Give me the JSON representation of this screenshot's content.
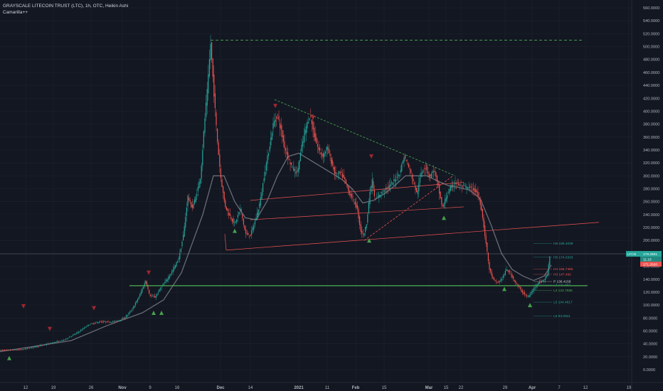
{
  "header": {
    "title": "GRAYSCALE LITECOIN TRUST (LTC), 1h, OTC, Heikin Ashi",
    "indicator": "Camarilla++"
  },
  "colors": {
    "background": "#131722",
    "up": "#26a69a",
    "down": "#ef5350",
    "grid": "#1e222d",
    "support_line": "#4caf50",
    "resistance_dash": "#4caf50",
    "trendline": "#ef5350",
    "moving_average": "#787b86",
    "price_line": "#9598a1"
  },
  "chart_data": {
    "type": "candlestick",
    "title": "GRAYSCALE LITECOIN TRUST (LTC), 1h, OTC, Heikin Ashi",
    "ylim": [
      0,
      560
    ],
    "y_ticks": [
      "560.0000",
      "540.0000",
      "520.0000",
      "500.0000",
      "480.0000",
      "460.0000",
      "440.0000",
      "420.0000",
      "400.0000",
      "380.0000",
      "360.0000",
      "340.0000",
      "320.0000",
      "300.0000",
      "280.0000",
      "260.0000",
      "240.0000",
      "220.0000",
      "200.0000",
      "180.0000",
      "160.0000",
      "140.0000",
      "120.0000",
      "100.0000",
      "80.0000",
      "60.0000",
      "40.0000",
      "20.0000",
      "0.0000"
    ],
    "x_ticks": [
      "12",
      "19",
      "26",
      "Nov",
      "9",
      "16",
      "Dec",
      "14",
      "2021",
      "11",
      "Feb",
      "15",
      "Mar",
      "15",
      "22",
      "29",
      "Apr",
      "7",
      "12",
      "19"
    ],
    "price_path": [
      [
        0,
        30
      ],
      [
        30,
        31
      ],
      [
        60,
        38
      ],
      [
        90,
        46
      ],
      [
        110,
        58
      ],
      [
        125,
        70
      ],
      [
        140,
        74
      ],
      [
        160,
        74
      ],
      [
        175,
        80
      ],
      [
        185,
        92
      ],
      [
        195,
        112
      ],
      [
        205,
        138
      ],
      [
        210,
        115
      ],
      [
        218,
        112
      ],
      [
        225,
        125
      ],
      [
        235,
        140
      ],
      [
        245,
        158
      ],
      [
        252,
        175
      ],
      [
        258,
        210
      ],
      [
        264,
        268
      ],
      [
        270,
        250
      ],
      [
        276,
        270
      ],
      [
        282,
        300
      ],
      [
        288,
        390
      ],
      [
        292,
        440
      ],
      [
        296,
        505
      ],
      [
        300,
        440
      ],
      [
        305,
        360
      ],
      [
        310,
        300
      ],
      [
        316,
        255
      ],
      [
        322,
        240
      ],
      [
        330,
        225
      ],
      [
        338,
        250
      ],
      [
        345,
        210
      ],
      [
        352,
        208
      ],
      [
        360,
        235
      ],
      [
        366,
        262
      ],
      [
        372,
        305
      ],
      [
        378,
        340
      ],
      [
        384,
        380
      ],
      [
        390,
        395
      ],
      [
        395,
        370
      ],
      [
        400,
        345
      ],
      [
        406,
        325
      ],
      [
        412,
        310
      ],
      [
        418,
        305
      ],
      [
        424,
        345
      ],
      [
        430,
        375
      ],
      [
        436,
        395
      ],
      [
        442,
        360
      ],
      [
        448,
        340
      ],
      [
        454,
        330
      ],
      [
        460,
        345
      ],
      [
        466,
        320
      ],
      [
        472,
        300
      ],
      [
        478,
        305
      ],
      [
        484,
        295
      ],
      [
        490,
        275
      ],
      [
        496,
        265
      ],
      [
        502,
        250
      ],
      [
        507,
        215
      ],
      [
        511,
        208
      ],
      [
        515,
        225
      ],
      [
        519,
        265
      ],
      [
        523,
        295
      ],
      [
        527,
        262
      ],
      [
        533,
        270
      ],
      [
        540,
        278
      ],
      [
        548,
        285
      ],
      [
        556,
        295
      ],
      [
        562,
        305
      ],
      [
        568,
        330
      ],
      [
        574,
        315
      ],
      [
        580,
        295
      ],
      [
        586,
        272
      ],
      [
        592,
        305
      ],
      [
        598,
        315
      ],
      [
        604,
        298
      ],
      [
        610,
        310
      ],
      [
        616,
        282
      ],
      [
        622,
        250
      ],
      [
        628,
        270
      ],
      [
        634,
        282
      ],
      [
        640,
        290
      ],
      [
        648,
        284
      ],
      [
        656,
        282
      ],
      [
        664,
        280
      ],
      [
        670,
        275
      ],
      [
        676,
        255
      ],
      [
        682,
        205
      ],
      [
        688,
        155
      ],
      [
        694,
        138
      ],
      [
        700,
        134
      ],
      [
        706,
        142
      ],
      [
        712,
        155
      ],
      [
        718,
        148
      ],
      [
        724,
        136
      ],
      [
        730,
        126
      ],
      [
        736,
        118
      ],
      [
        742,
        112
      ],
      [
        748,
        121
      ],
      [
        754,
        132
      ],
      [
        760,
        136
      ],
      [
        766,
        140
      ],
      [
        770,
        150
      ],
      [
        774,
        188
      ]
    ],
    "moving_average": [
      [
        0,
        28
      ],
      [
        100,
        45
      ],
      [
        150,
        68
      ],
      [
        200,
        88
      ],
      [
        230,
        108
      ],
      [
        255,
        150
      ],
      [
        270,
        195
      ],
      [
        285,
        240
      ],
      [
        300,
        300
      ],
      [
        315,
        300
      ],
      [
        330,
        260
      ],
      [
        345,
        235
      ],
      [
        360,
        232
      ],
      [
        375,
        260
      ],
      [
        390,
        300
      ],
      [
        405,
        330
      ],
      [
        420,
        335
      ],
      [
        435,
        325
      ],
      [
        450,
        315
      ],
      [
        465,
        305
      ],
      [
        480,
        295
      ],
      [
        495,
        280
      ],
      [
        510,
        258
      ],
      [
        525,
        262
      ],
      [
        540,
        272
      ],
      [
        555,
        285
      ],
      [
        570,
        300
      ],
      [
        585,
        300
      ],
      [
        600,
        300
      ],
      [
        615,
        292
      ],
      [
        630,
        285
      ],
      [
        645,
        282
      ],
      [
        660,
        278
      ],
      [
        675,
        265
      ],
      [
        690,
        225
      ],
      [
        705,
        180
      ],
      [
        720,
        155
      ],
      [
        735,
        145
      ],
      [
        750,
        138
      ],
      [
        765,
        145
      ],
      [
        775,
        162
      ]
    ],
    "current_price": 179.2601,
    "current_price_label": "179.2601",
    "badge_ticker": "LTCN",
    "badge_sub1": "11.16",
    "badge_sub2": "171.2020",
    "camarilla_levels": [
      {
        "label": "H6 195.4039",
        "value": 195.4039,
        "color": "#26a69a"
      },
      {
        "label": "H5 174.0333",
        "value": 174.0333,
        "color": "#26a69a"
      },
      {
        "label": "H4 155.7365",
        "value": 155.7365,
        "color": "#ef5350"
      },
      {
        "label": "H3 147.492",
        "value": 147.492,
        "color": "#ef5350"
      },
      {
        "label": "P 136.4158",
        "value": 136.4158,
        "color": "#d1d4dc"
      },
      {
        "label": "L3 131.007",
        "value": 131.007,
        "color": "#26a69a"
      },
      {
        "label": "L4 122.7585",
        "value": 122.7585,
        "color": "#4caf50"
      },
      {
        "label": "L5 104.4617",
        "value": 104.4617,
        "color": "#26a69a"
      },
      {
        "label": "L6 83.0911",
        "value": 83.0911,
        "color": "#26a69a"
      }
    ],
    "support_level": 130,
    "resistance_level": 510,
    "grid": true,
    "legend": "top-left"
  }
}
